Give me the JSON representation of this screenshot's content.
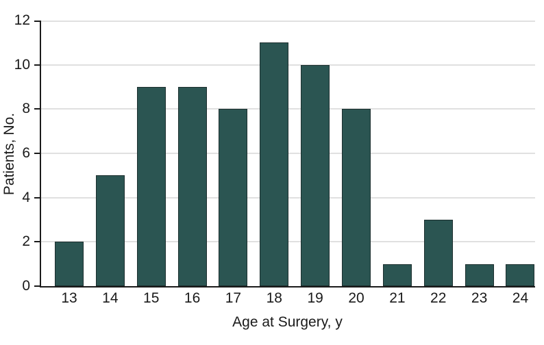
{
  "chart_data": {
    "type": "bar",
    "title": "",
    "xlabel": "Age at Surgery, y",
    "ylabel": "Patients, No.",
    "categories": [
      "13",
      "14",
      "15",
      "16",
      "17",
      "18",
      "19",
      "20",
      "21",
      "22",
      "23",
      "24"
    ],
    "values": [
      2,
      5,
      9,
      9,
      8,
      11,
      10,
      8,
      1,
      3,
      1,
      1
    ],
    "ylim": [
      0,
      12
    ],
    "yticks": [
      0,
      2,
      4,
      6,
      8,
      10,
      12
    ],
    "grid": "horizontal",
    "legend": false,
    "colors": {
      "bar_fill": "#2B5552",
      "bar_border": "#1C2E2E",
      "gridline": "#e0e0e0",
      "axis": "#1a1a1a",
      "text": "#1a1a1a",
      "background": "#ffffff"
    }
  }
}
